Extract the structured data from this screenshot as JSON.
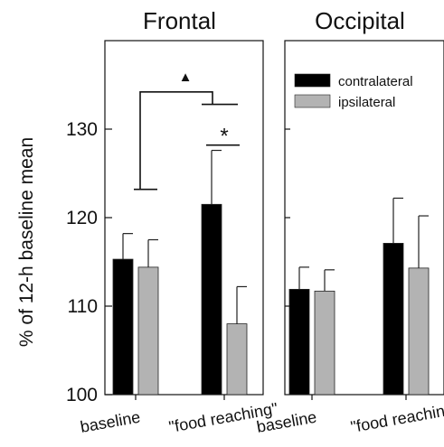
{
  "chart_data": {
    "type": "bar",
    "ylabel": "% of 12-h baseline mean",
    "ylim": [
      100,
      140
    ],
    "yticks": [
      100,
      110,
      120,
      130
    ],
    "categories": [
      "baseline",
      "\"food reaching\""
    ],
    "legend": {
      "placement": "top-right of Occipital panel",
      "entries": [
        {
          "name": "contralateral",
          "color": "#000000"
        },
        {
          "name": "ipsilateral",
          "color": "#b3b3b3"
        }
      ]
    },
    "panels": [
      {
        "title": "Frontal",
        "series": [
          {
            "name": "contralateral",
            "values": [
              115.3,
              121.5
            ],
            "error": [
              2.9,
              6.1
            ]
          },
          {
            "name": "ipsilateral",
            "values": [
              114.4,
              108.0
            ],
            "error": [
              3.1,
              4.2
            ]
          }
        ],
        "annotations": [
          {
            "symbol": "▲",
            "meaning": "significance between contralateral baseline and \"food reaching\" contralateral vs ipsilateral difference"
          },
          {
            "symbol": "*",
            "meaning": "contralateral vs ipsilateral in \"food reaching\""
          }
        ]
      },
      {
        "title": "Occipital",
        "series": [
          {
            "name": "contralateral",
            "values": [
              111.9,
              117.1
            ],
            "error": [
              2.5,
              5.1
            ]
          },
          {
            "name": "ipsilateral",
            "values": [
              111.7,
              114.3
            ],
            "error": [
              2.4,
              5.9
            ]
          }
        ],
        "annotations": []
      }
    ],
    "colors": {
      "contralateral": "#000000",
      "ipsilateral": "#b3b3b3",
      "axis": "#111111"
    }
  }
}
